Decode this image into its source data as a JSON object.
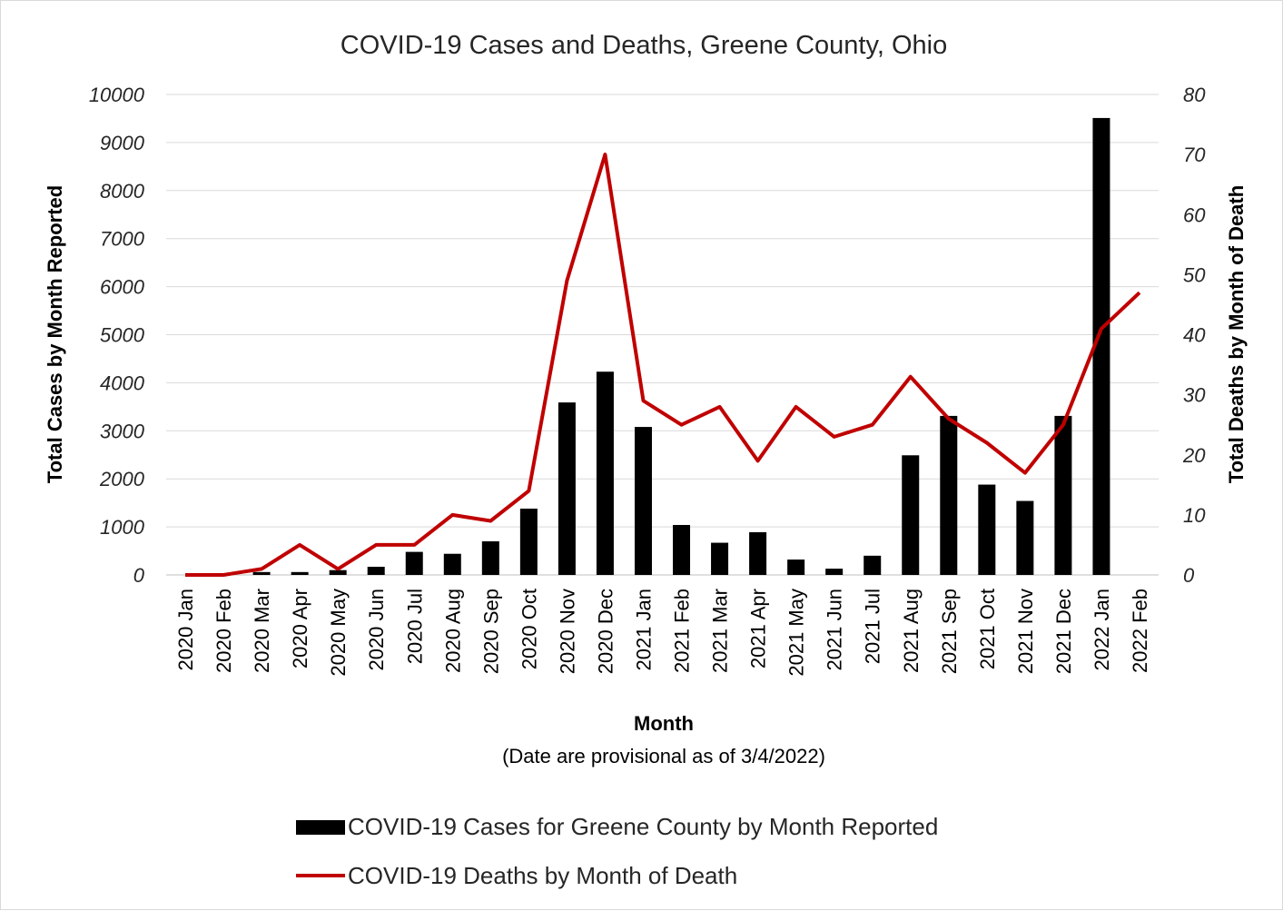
{
  "chart_data": {
    "type": "bar",
    "title": "COVID-19 Cases  and Deaths, Greene County, Ohio",
    "xlabel": "Month",
    "subtitle_note": "(Date are provisional as of 3/4/2022)",
    "ylabel": "Total Cases by Month Reported",
    "y2label": "Total Deaths by Month of Death",
    "ylim": [
      0,
      10000
    ],
    "y2lim": [
      0,
      80
    ],
    "yticks": [
      "0",
      "1000",
      "2000",
      "3000",
      "4000",
      "5000",
      "6000",
      "7000",
      "8000",
      "9000",
      "10000"
    ],
    "y2ticks": [
      "0",
      "10",
      "20",
      "30",
      "40",
      "50",
      "60",
      "70",
      "80"
    ],
    "grid": true,
    "legend_position": "bottom",
    "categories": [
      "2020 Jan",
      "2020 Feb",
      "2020 Mar",
      "2020 Apr",
      "2020 May",
      "2020 Jun",
      "2020 Jul",
      "2020 Aug",
      "2020 Sep",
      "2020 Oct",
      "2020 Nov",
      "2020 Dec",
      "2021 Jan",
      "2021 Feb",
      "2021 Mar",
      "2021 Apr",
      "2021 May",
      "2021 Jun",
      "2021 Jul",
      "2021 Aug",
      "2021 Sep",
      "2021 Oct",
      "2021 Nov",
      "2021 Dec",
      "2022 Jan",
      "2022 Feb"
    ],
    "series": [
      {
        "name": "COVID-19 Cases for Greene County by Month Reported",
        "type": "bar",
        "axis": "left",
        "color": "#000000",
        "values": [
          0,
          0,
          60,
          60,
          100,
          170,
          480,
          440,
          700,
          1380,
          3590,
          4230,
          3080,
          1040,
          670,
          890,
          320,
          130,
          400,
          2490,
          3310,
          1880,
          1540,
          3310,
          9510,
          0
        ]
      },
      {
        "name": "COVID-19 Deaths by Month of Death",
        "type": "line",
        "axis": "right",
        "color": "#c00000",
        "values": [
          0,
          0,
          1,
          5,
          1,
          5,
          5,
          10,
          9,
          14,
          49,
          70,
          29,
          25,
          28,
          19,
          28,
          23,
          25,
          33,
          26,
          22,
          17,
          25,
          41,
          47
        ]
      }
    ]
  }
}
